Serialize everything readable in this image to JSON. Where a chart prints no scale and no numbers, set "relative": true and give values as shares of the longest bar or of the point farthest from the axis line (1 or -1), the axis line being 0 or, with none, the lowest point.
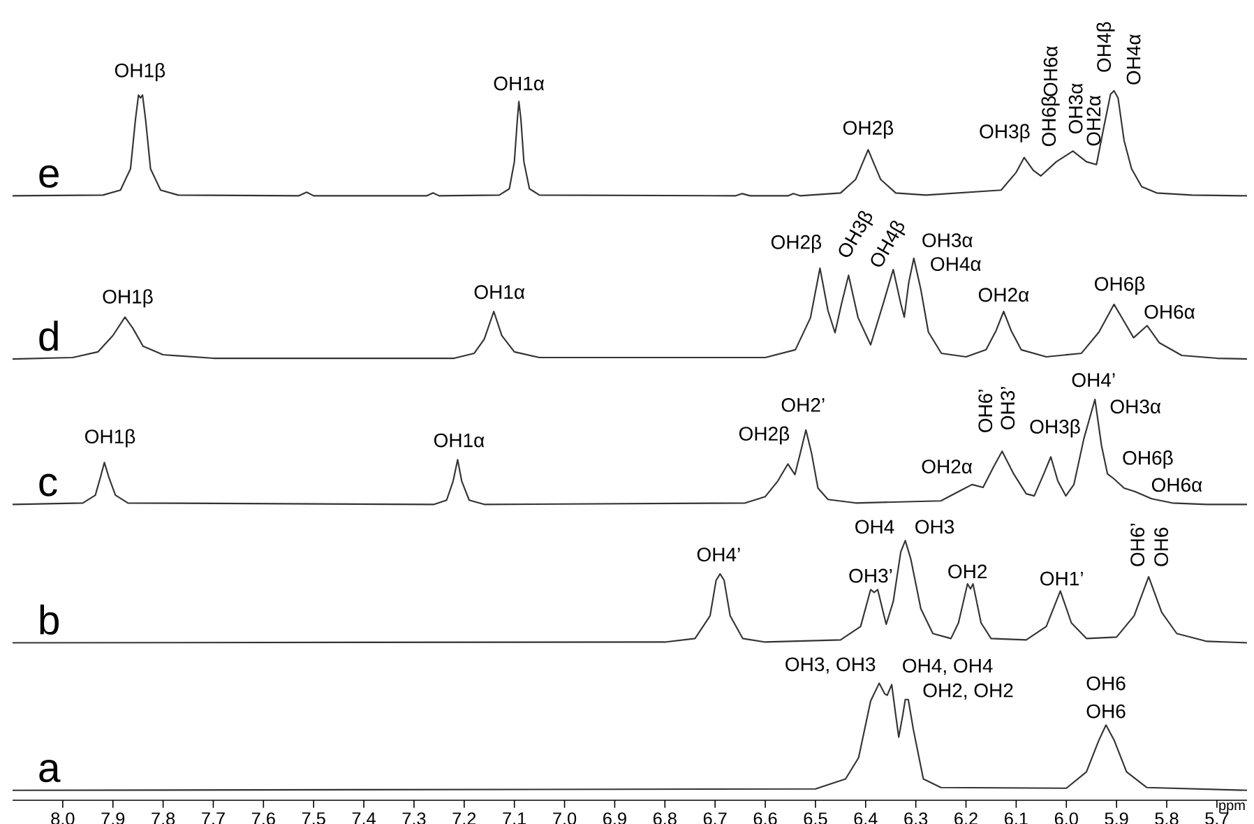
{
  "chart_data": {
    "type": "line",
    "relative": true,
    "xlabel": "ppm",
    "xlim": [
      8.1,
      5.64
    ],
    "xticks": [
      {
        "value": 8.0,
        "label": "8.0"
      },
      {
        "value": 7.9,
        "label": "7.9"
      },
      {
        "value": 7.8,
        "label": "7.8"
      },
      {
        "value": 7.7,
        "label": "7.7"
      },
      {
        "value": 7.6,
        "label": "7.6"
      },
      {
        "value": 7.5,
        "label": "7.5"
      },
      {
        "value": 7.4,
        "label": "7.4"
      },
      {
        "value": 7.3,
        "label": "7.3"
      },
      {
        "value": 7.2,
        "label": "7.2"
      },
      {
        "value": 7.1,
        "label": "7.1"
      },
      {
        "value": 7.0,
        "label": "7.0"
      },
      {
        "value": 6.9,
        "label": "6.9"
      },
      {
        "value": 6.8,
        "label": "6.8"
      },
      {
        "value": 6.7,
        "label": "6.7"
      },
      {
        "value": 6.6,
        "label": "6.6"
      },
      {
        "value": 6.5,
        "label": "6.5"
      },
      {
        "value": 6.4,
        "label": "6.4"
      },
      {
        "value": 6.3,
        "label": "6.3"
      },
      {
        "value": 6.2,
        "label": "6.2"
      },
      {
        "value": 6.1,
        "label": "6.1"
      },
      {
        "value": 6.0,
        "label": "6.0"
      },
      {
        "value": 5.9,
        "label": "5.9"
      },
      {
        "value": 5.8,
        "label": "5.8"
      },
      {
        "value": 5.7,
        "label": "5.7"
      }
    ],
    "tick_labels": "x",
    "legend": false,
    "marker": "none",
    "series": [
      {
        "name": "a",
        "color": "#333333",
        "x": [
          8.1,
          6.5,
          6.44,
          6.414,
          6.39,
          6.373,
          6.362,
          6.357,
          6.348,
          6.34,
          6.334,
          6.326,
          6.321,
          6.315,
          6.305,
          6.285,
          6.25,
          6.0,
          5.96,
          5.935,
          5.921,
          5.905,
          5.88,
          5.84,
          5.64
        ],
        "values": [
          0.014,
          0.016,
          0.03,
          0.06,
          0.14,
          0.165,
          0.15,
          0.148,
          0.163,
          0.12,
          0.089,
          0.12,
          0.142,
          0.142,
          0.1,
          0.03,
          0.018,
          0.017,
          0.04,
          0.085,
          0.106,
          0.085,
          0.04,
          0.018,
          0.014
        ]
      },
      {
        "name": "b",
        "color": "#333333",
        "x": [
          8.1,
          6.8,
          6.74,
          6.71,
          6.698,
          6.69,
          6.682,
          6.67,
          6.645,
          6.6,
          6.45,
          6.41,
          6.39,
          6.383,
          6.376,
          6.365,
          6.359,
          6.345,
          6.33,
          6.321,
          6.31,
          6.29,
          6.266,
          6.23,
          6.215,
          6.197,
          6.191,
          6.186,
          6.17,
          6.15,
          6.08,
          6.04,
          6.012,
          5.99,
          5.96,
          5.9,
          5.865,
          5.836,
          5.81,
          5.78,
          5.72,
          5.64
        ],
        "values": [
          0.222,
          0.223,
          0.228,
          0.26,
          0.31,
          0.319,
          0.31,
          0.26,
          0.228,
          0.223,
          0.226,
          0.245,
          0.297,
          0.293,
          0.297,
          0.265,
          0.248,
          0.28,
          0.35,
          0.366,
          0.34,
          0.27,
          0.235,
          0.228,
          0.25,
          0.305,
          0.298,
          0.305,
          0.25,
          0.228,
          0.226,
          0.245,
          0.295,
          0.25,
          0.228,
          0.23,
          0.26,
          0.315,
          0.265,
          0.235,
          0.224,
          0.222
        ]
      },
      {
        "name": "c",
        "color": "#333333",
        "x": [
          8.1,
          7.96,
          7.935,
          7.925,
          7.917,
          7.908,
          7.895,
          7.87,
          7.26,
          7.235,
          7.222,
          7.213,
          7.205,
          7.19,
          7.16,
          6.64,
          6.6,
          6.575,
          6.555,
          6.541,
          6.53,
          6.519,
          6.508,
          6.495,
          6.475,
          6.42,
          6.25,
          6.215,
          6.188,
          6.166,
          6.145,
          6.128,
          6.105,
          6.08,
          6.064,
          6.045,
          6.031,
          6.017,
          6.001,
          5.985,
          5.965,
          5.943,
          5.93,
          5.918,
          5.905,
          5.885,
          5.863,
          5.83,
          5.789,
          5.72,
          5.64
        ],
        "values": [
          0.417,
          0.419,
          0.43,
          0.455,
          0.476,
          0.455,
          0.43,
          0.419,
          0.417,
          0.423,
          0.45,
          0.48,
          0.45,
          0.423,
          0.417,
          0.419,
          0.428,
          0.45,
          0.474,
          0.459,
          0.49,
          0.522,
          0.49,
          0.44,
          0.424,
          0.419,
          0.422,
          0.435,
          0.445,
          0.441,
          0.47,
          0.492,
          0.46,
          0.432,
          0.429,
          0.46,
          0.484,
          0.45,
          0.429,
          0.445,
          0.51,
          0.565,
          0.5,
          0.46,
          0.453,
          0.44,
          0.435,
          0.425,
          0.419,
          0.417,
          0.417
        ]
      },
      {
        "name": "d",
        "color": "#333333",
        "x": [
          8.1,
          7.98,
          7.93,
          7.9,
          7.876,
          7.86,
          7.84,
          7.8,
          7.7,
          7.22,
          7.18,
          7.16,
          7.141,
          7.125,
          7.1,
          7.05,
          6.6,
          6.54,
          6.51,
          6.491,
          6.475,
          6.461,
          6.448,
          6.434,
          6.415,
          6.39,
          6.365,
          6.345,
          6.33,
          6.323,
          6.314,
          6.304,
          6.29,
          6.275,
          6.249,
          6.2,
          6.16,
          6.14,
          6.125,
          6.11,
          6.09,
          6.04,
          5.97,
          5.935,
          5.905,
          5.885,
          5.866,
          5.839,
          5.815,
          5.77,
          5.7,
          5.64
        ],
        "values": [
          0.622,
          0.624,
          0.632,
          0.655,
          0.681,
          0.665,
          0.64,
          0.628,
          0.623,
          0.623,
          0.63,
          0.65,
          0.689,
          0.655,
          0.632,
          0.624,
          0.624,
          0.635,
          0.68,
          0.75,
          0.69,
          0.659,
          0.7,
          0.74,
          0.68,
          0.642,
          0.7,
          0.748,
          0.7,
          0.681,
          0.73,
          0.764,
          0.72,
          0.66,
          0.63,
          0.625,
          0.635,
          0.662,
          0.689,
          0.662,
          0.635,
          0.625,
          0.63,
          0.66,
          0.699,
          0.675,
          0.652,
          0.669,
          0.645,
          0.627,
          0.623,
          0.622
        ]
      },
      {
        "name": "e",
        "color": "#333333",
        "x": [
          8.1,
          7.92,
          7.885,
          7.865,
          7.855,
          7.849,
          7.845,
          7.841,
          7.835,
          7.825,
          7.805,
          7.77,
          7.53,
          7.514,
          7.5,
          7.275,
          7.262,
          7.25,
          7.13,
          7.11,
          7.1,
          7.094,
          7.091,
          7.087,
          7.081,
          7.07,
          7.05,
          6.66,
          6.646,
          6.63,
          6.555,
          6.544,
          6.53,
          6.45,
          6.42,
          6.405,
          6.395,
          6.385,
          6.37,
          6.34,
          6.28,
          6.13,
          6.1,
          6.084,
          6.066,
          6.051,
          6.02,
          5.987,
          5.96,
          5.94,
          5.925,
          5.912,
          5.905,
          5.897,
          5.885,
          5.87,
          5.85,
          5.82,
          5.75,
          5.64
        ],
        "values": [
          0.852,
          0.853,
          0.86,
          0.89,
          0.96,
          0.994,
          0.99,
          0.994,
          0.96,
          0.89,
          0.86,
          0.853,
          0.852,
          0.857,
          0.852,
          0.852,
          0.856,
          0.852,
          0.853,
          0.862,
          0.9,
          0.96,
          0.985,
          0.96,
          0.9,
          0.862,
          0.853,
          0.852,
          0.855,
          0.852,
          0.852,
          0.855,
          0.852,
          0.856,
          0.875,
          0.9,
          0.917,
          0.9,
          0.875,
          0.856,
          0.853,
          0.86,
          0.885,
          0.906,
          0.888,
          0.88,
          0.9,
          0.915,
          0.9,
          0.896,
          0.95,
          0.995,
          1.0,
          0.99,
          0.93,
          0.89,
          0.865,
          0.856,
          0.853,
          0.852
        ]
      }
    ],
    "annotations": [
      {
        "text": "OH1β",
        "x": 7.849,
        "y": 0.994
      },
      {
        "text": "OH1α",
        "x": 7.091,
        "y": 0.985
      },
      {
        "text": "OH2β",
        "x": 6.395,
        "y": 0.917
      },
      {
        "text": "OH3β",
        "x": 6.084,
        "y": 0.906
      },
      {
        "text": "OH6β",
        "x": 5.987,
        "y": 0.915
      },
      "OH6α",
      {
        "text": "OH3α",
        "x": 5.987,
        "y": 0.915
      },
      {
        "text": "OH2α",
        "x": 5.94,
        "y": 0.896
      },
      {
        "text": "OH4β",
        "x": 5.905,
        "y": 1.0
      },
      {
        "text": "OH4α",
        "x": 5.905,
        "y": 1.0
      },
      {
        "text": "OH1β",
        "x": 7.876,
        "y": 0.681
      },
      {
        "text": "OH1α",
        "x": 7.141,
        "y": 0.689
      },
      {
        "text": "OH2β",
        "x": 6.491,
        "y": 0.75
      },
      {
        "text": "OH3β",
        "x": 6.434,
        "y": 0.74
      },
      {
        "text": "OH4β",
        "x": 6.345,
        "y": 0.748
      },
      {
        "text": "OH3α",
        "x": 6.304,
        "y": 0.764
      },
      {
        "text": "OH4α",
        "x": 6.304,
        "y": 0.764
      },
      {
        "text": "OH2α",
        "x": 6.125,
        "y": 0.689
      },
      {
        "text": "OH6β",
        "x": 5.905,
        "y": 0.699
      },
      {
        "text": "OH6α",
        "x": 5.839,
        "y": 0.669
      },
      {
        "text": "OH1β",
        "x": 7.917,
        "y": 0.476
      },
      {
        "text": "OH1α",
        "x": 7.213,
        "y": 0.48
      },
      {
        "text": "OH2β",
        "x": 6.555,
        "y": 0.474
      },
      {
        "text": "OH2’",
        "x": 6.519,
        "y": 0.522
      },
      {
        "text": "OH2α",
        "x": 6.188,
        "y": 0.445
      },
      {
        "text": "OH6’",
        "x": 6.128,
        "y": 0.492
      },
      {
        "text": "OH3’",
        "x": 6.128,
        "y": 0.492
      },
      {
        "text": "OH3β",
        "x": 6.031,
        "y": 0.484
      },
      {
        "text": "OH4’",
        "x": 5.943,
        "y": 0.565
      },
      {
        "text": "OH3α",
        "x": 5.943,
        "y": 0.565
      },
      {
        "text": "OH6β",
        "x": 5.885,
        "y": 0.44
      },
      {
        "text": "OH6α",
        "x": 5.83,
        "y": 0.425
      },
      {
        "text": "OH4’",
        "x": 6.69,
        "y": 0.319
      },
      {
        "text": "OH3’",
        "x": 6.39,
        "y": 0.297
      },
      {
        "text": "OH4",
        "x": 6.321,
        "y": 0.366
      },
      {
        "text": "OH3",
        "x": 6.321,
        "y": 0.366
      },
      {
        "text": "OH2",
        "x": 6.197,
        "y": 0.305
      },
      {
        "text": "OH1’",
        "x": 6.012,
        "y": 0.295
      },
      {
        "text": "OH6’",
        "x": 5.836,
        "y": 0.315
      },
      {
        "text": "OH6",
        "x": 5.836,
        "y": 0.315
      },
      {
        "text": "OH3, OH3",
        "x": 6.373,
        "y": 0.165
      },
      {
        "text": "OH4, OH4",
        "x": 6.348,
        "y": 0.163
      },
      {
        "text": "OH2, OH2",
        "x": 6.321,
        "y": 0.142
      },
      {
        "text": "OH6",
        "x": 5.921,
        "y": 0.106
      },
      {
        "text": "OH6",
        "x": 5.921,
        "y": 0.106
      }
    ]
  }
}
